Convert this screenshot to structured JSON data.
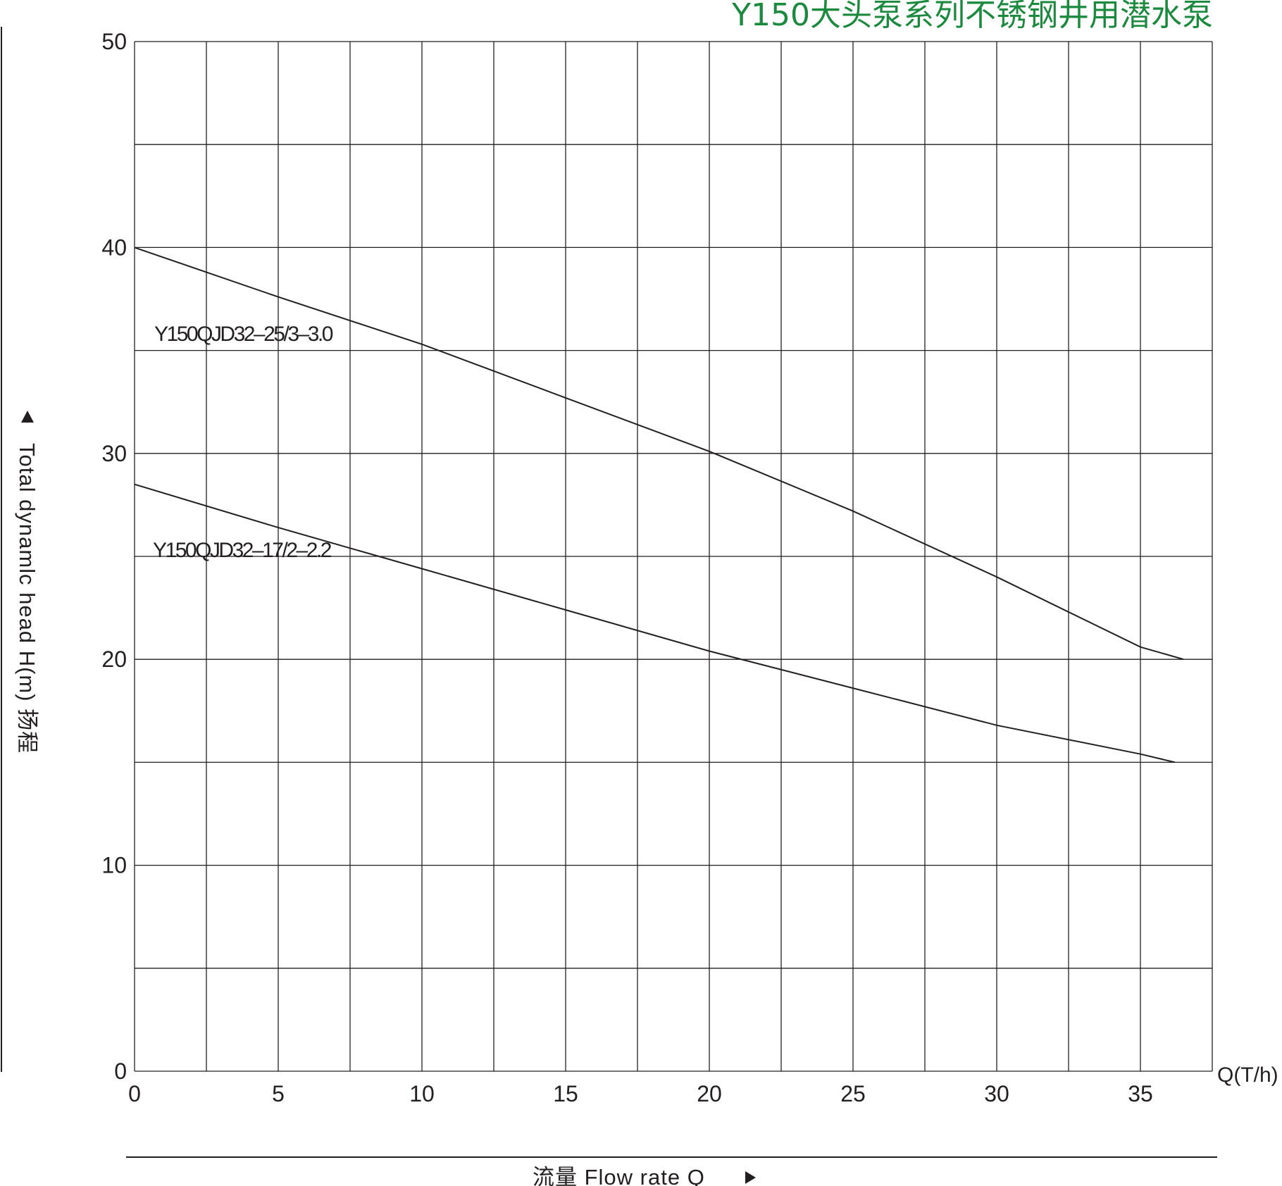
{
  "chart_data": {
    "type": "line",
    "title": "Y150大头泵系列不锈钢井用潜水泵",
    "title_color": "#1b8a3e",
    "xlabel": "流量 Flow rate Q",
    "ylabel": "Total dynamlc head H(m) 扬程",
    "x_unit": "Q(T/h)",
    "xlim": [
      0,
      37.5
    ],
    "ylim": [
      0,
      50
    ],
    "x_ticks": [
      0,
      5,
      10,
      15,
      20,
      25,
      30,
      35
    ],
    "y_ticks": [
      0,
      10,
      20,
      30,
      40,
      50
    ],
    "x_gridlines": [
      0,
      2.5,
      5,
      7.5,
      10,
      12.5,
      15,
      17.5,
      20,
      22.5,
      25,
      27.5,
      30,
      32.5,
      35,
      37.5
    ],
    "y_gridlines": [
      0,
      5,
      10,
      15,
      20,
      25,
      30,
      35,
      40,
      45,
      50
    ],
    "grid": true,
    "line_color": "#231f20",
    "series": [
      {
        "name": "Y150QJD32–25/3–3.0",
        "x": [
          0,
          5,
          10,
          15,
          20,
          25,
          30,
          35,
          36.5
        ],
        "y": [
          40,
          37.6,
          35.3,
          32.7,
          30.1,
          27.2,
          24.0,
          20.6,
          20.0
        ]
      },
      {
        "name": "Y150QJD32–17/2–2.2",
        "x": [
          0,
          5,
          10,
          15,
          20,
          25,
          30,
          35,
          36.2
        ],
        "y": [
          28.5,
          26.4,
          24.4,
          22.4,
          20.4,
          18.6,
          16.8,
          15.4,
          15.0
        ]
      }
    ]
  }
}
